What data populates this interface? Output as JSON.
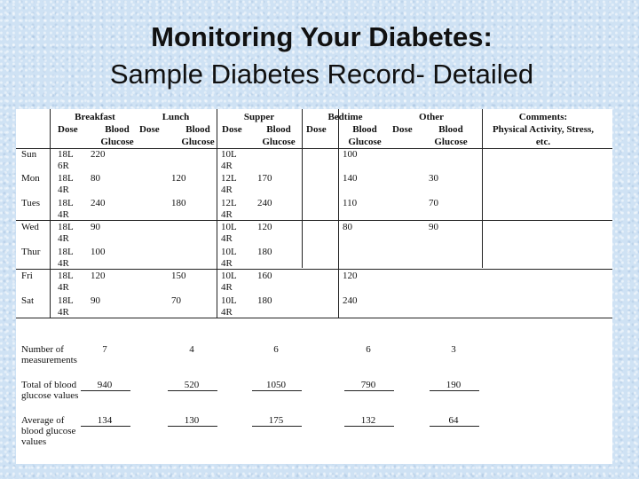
{
  "slide": {
    "title": "Monitoring Your Diabetes:",
    "subtitle": "Sample Diabetes Record- Detailed"
  },
  "record": {
    "groups": [
      "Breakfast",
      "Lunch",
      "Supper",
      "Bedtime",
      "Other",
      "Comments:"
    ],
    "comments_sub": [
      "Physical Activity, Stress,",
      "etc."
    ],
    "sub_dose": "Dose",
    "sub_blood": "Blood",
    "sub_glucose": "Glucose",
    "days": [
      {
        "day": "Sun",
        "b_dose": [
          "18L",
          "6R"
        ],
        "b_bg": "220",
        "l_dose": [],
        "l_bg": "",
        "s_dose": [
          "10L",
          "4R"
        ],
        "s_bg": "",
        "bed_bg": "100",
        "o_bg": ""
      },
      {
        "day": "Mon",
        "b_dose": [
          "18L",
          "4R"
        ],
        "b_bg": "80",
        "l_dose": [],
        "l_bg": "120",
        "s_dose": [
          "12L",
          "4R"
        ],
        "s_bg": "170",
        "bed_bg": "140",
        "o_bg": "30"
      },
      {
        "day": "Tues",
        "b_dose": [
          "18L",
          "4R"
        ],
        "b_bg": "240",
        "l_dose": [],
        "l_bg": "180",
        "s_dose": [
          "12L",
          "4R"
        ],
        "s_bg": "240",
        "bed_bg": "110",
        "o_bg": "70"
      },
      {
        "day": "Wed",
        "b_dose": [
          "18L",
          "4R"
        ],
        "b_bg": "90",
        "l_dose": [],
        "l_bg": "",
        "s_dose": [
          "10L",
          "4R"
        ],
        "s_bg": "120",
        "bed_bg": "80",
        "o_bg": "90"
      },
      {
        "day": "Thur",
        "b_dose": [
          "18L",
          "4R"
        ],
        "b_bg": "100",
        "l_dose": [],
        "l_bg": "",
        "s_dose": [
          "10L",
          "4R"
        ],
        "s_bg": "180",
        "bed_bg": "",
        "o_bg": ""
      },
      {
        "day": "Fri",
        "b_dose": [
          "18L",
          "4R"
        ],
        "b_bg": "120",
        "l_dose": [],
        "l_bg": "150",
        "s_dose": [
          "10L",
          "4R"
        ],
        "s_bg": "160",
        "bed_bg": "120",
        "o_bg": ""
      },
      {
        "day": "Sat",
        "b_dose": [
          "18L",
          "4R"
        ],
        "b_bg": "90",
        "l_dose": [],
        "l_bg": "70",
        "s_dose": [
          "10L",
          "4R"
        ],
        "s_bg": "180",
        "bed_bg": "240",
        "o_bg": ""
      }
    ],
    "summary": [
      {
        "label": [
          "Number of",
          "measurements"
        ],
        "values": [
          "7",
          "4",
          "6",
          "6",
          "3"
        ],
        "underline": false
      },
      {
        "label": [
          "Total of blood",
          "glucose values"
        ],
        "values": [
          "940",
          "520",
          "1050",
          "790",
          "190"
        ],
        "underline": true
      },
      {
        "label": [
          "Average of",
          "blood glucose",
          "values"
        ],
        "values": [
          "134",
          "130",
          "175",
          "132",
          "64"
        ],
        "underline": true
      }
    ]
  }
}
